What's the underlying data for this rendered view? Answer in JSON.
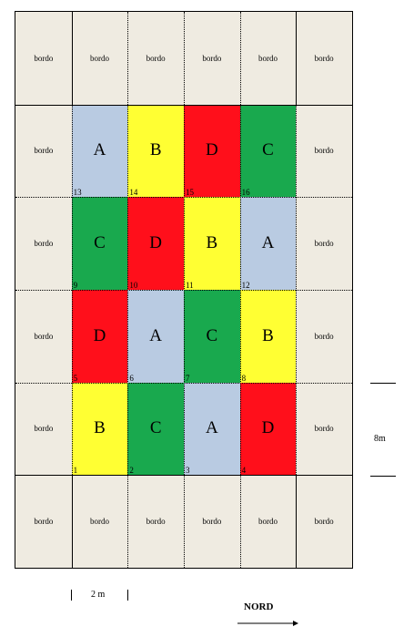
{
  "border_label": "bordo",
  "plots": [
    {
      "row": 1,
      "col": 1,
      "letter": "A",
      "number": "13",
      "color": "#b9cbe2"
    },
    {
      "row": 1,
      "col": 2,
      "letter": "B",
      "number": "14",
      "color": "#ffff33"
    },
    {
      "row": 1,
      "col": 3,
      "letter": "D",
      "number": "15",
      "color": "#ff0f1b"
    },
    {
      "row": 1,
      "col": 4,
      "letter": "C",
      "number": "16",
      "color": "#19a94e"
    },
    {
      "row": 2,
      "col": 1,
      "letter": "C",
      "number": "9",
      "color": "#19a94e"
    },
    {
      "row": 2,
      "col": 2,
      "letter": "D",
      "number": "10",
      "color": "#ff0f1b"
    },
    {
      "row": 2,
      "col": 3,
      "letter": "B",
      "number": "11",
      "color": "#ffff33"
    },
    {
      "row": 2,
      "col": 4,
      "letter": "A",
      "number": "12",
      "color": "#b9cbe2"
    },
    {
      "row": 3,
      "col": 1,
      "letter": "D",
      "number": "5",
      "color": "#ff0f1b"
    },
    {
      "row": 3,
      "col": 2,
      "letter": "A",
      "number": "6",
      "color": "#b9cbe2"
    },
    {
      "row": 3,
      "col": 3,
      "letter": "C",
      "number": "7",
      "color": "#19a94e"
    },
    {
      "row": 3,
      "col": 4,
      "letter": "B",
      "number": "8",
      "color": "#ffff33"
    },
    {
      "row": 4,
      "col": 1,
      "letter": "B",
      "number": "1",
      "color": "#ffff33"
    },
    {
      "row": 4,
      "col": 2,
      "letter": "C",
      "number": "2",
      "color": "#19a94e"
    },
    {
      "row": 4,
      "col": 3,
      "letter": "A",
      "number": "3",
      "color": "#b9cbe2"
    },
    {
      "row": 4,
      "col": 4,
      "letter": "D",
      "number": "4",
      "color": "#ff0f1b"
    }
  ],
  "scale_width_label": "2 m",
  "scale_height_label": "8m",
  "north_label": "NORD"
}
